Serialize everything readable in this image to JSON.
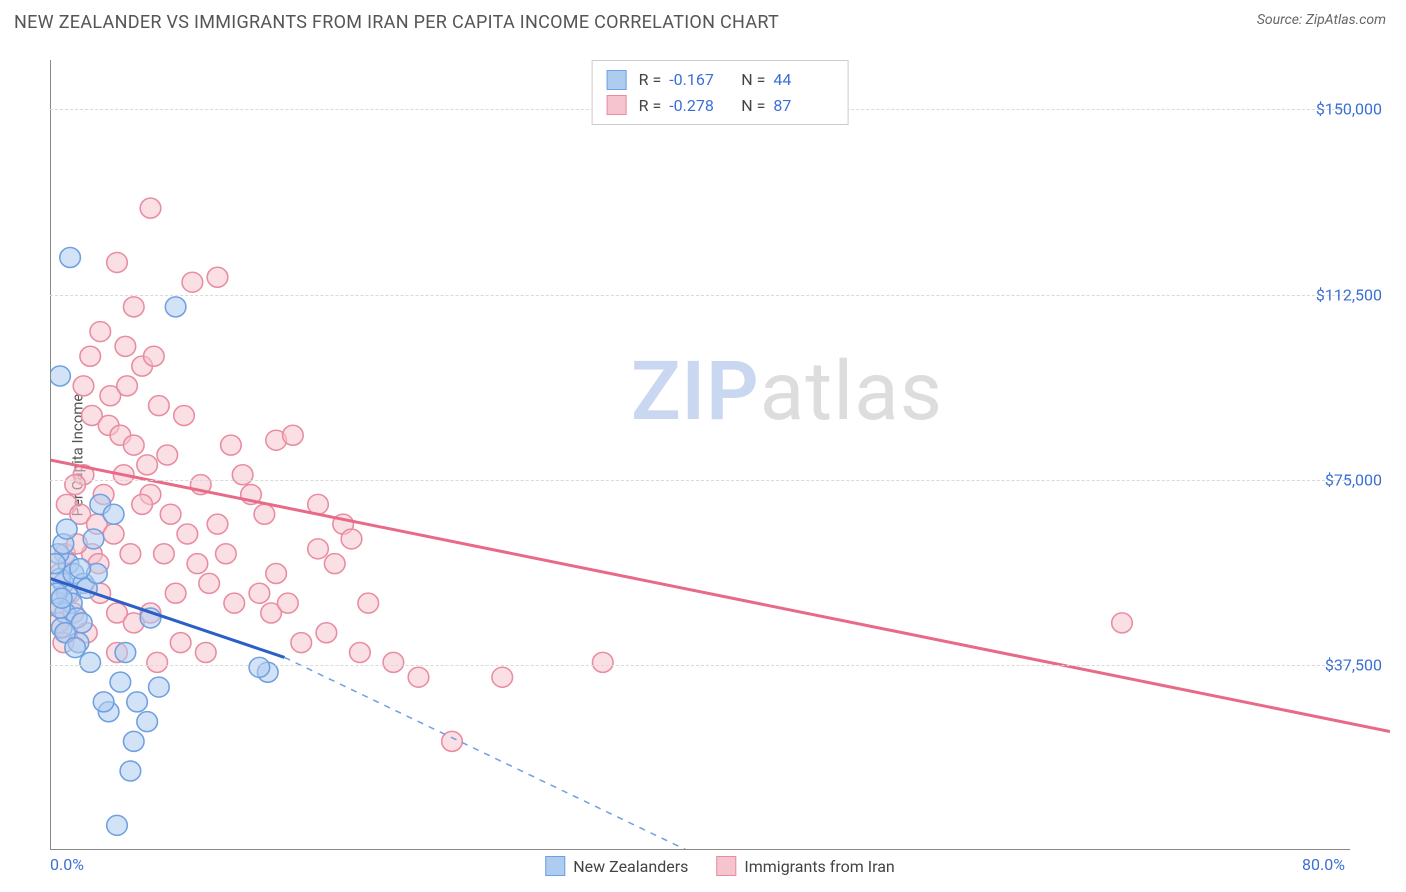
{
  "header": {
    "title": "NEW ZEALANDER VS IMMIGRANTS FROM IRAN PER CAPITA INCOME CORRELATION CHART",
    "source_prefix": "Source: ",
    "source_name": "ZipAtlas.com"
  },
  "watermark": {
    "part1": "ZIP",
    "part2": "atlas"
  },
  "chart": {
    "type": "scatter",
    "ylabel": "Per Capita Income",
    "xlim": [
      0,
      80
    ],
    "ylim": [
      0,
      160000
    ],
    "x_ticks": [
      {
        "v": 0,
        "label": "0.0%"
      },
      {
        "v": 80,
        "label": "80.0%"
      }
    ],
    "y_ticks": [
      {
        "v": 37500,
        "label": "$37,500"
      },
      {
        "v": 75000,
        "label": "$75,000"
      },
      {
        "v": 112500,
        "label": "$112,500"
      },
      {
        "v": 150000,
        "label": "$150,000"
      }
    ],
    "grid_color": "#d9d9d9",
    "axis_color": "#888888",
    "background_color": "#ffffff",
    "point_radius": 10,
    "point_opacity": 0.55,
    "series": [
      {
        "name": "New Zealanders",
        "color_fill": "#aeccf0",
        "color_stroke": "#6fa0e0",
        "R": "-0.167",
        "N": "44",
        "trend": {
          "x1": 0,
          "y1": 55000,
          "x2": 14,
          "y2": 39000,
          "color": "#2b5fc7",
          "width": 3,
          "dash": "solid"
        },
        "trend_ext": {
          "x1": 14,
          "y1": 39000,
          "x2": 38,
          "y2": 0,
          "color": "#6fa0e0",
          "width": 1.5,
          "dash": "dashed"
        },
        "points": [
          [
            1.2,
            120000
          ],
          [
            0.6,
            96000
          ],
          [
            0.8,
            54000
          ],
          [
            1.0,
            52000
          ],
          [
            1.1,
            58000
          ],
          [
            1.3,
            50000
          ],
          [
            0.9,
            48000
          ],
          [
            1.6,
            47000
          ],
          [
            1.9,
            46000
          ],
          [
            0.7,
            45000
          ],
          [
            0.6,
            55000
          ],
          [
            1.4,
            56000
          ],
          [
            2.6,
            63000
          ],
          [
            3.0,
            70000
          ],
          [
            3.8,
            68000
          ],
          [
            4.5,
            40000
          ],
          [
            6.0,
            47000
          ],
          [
            7.5,
            110000
          ],
          [
            3.5,
            28000
          ],
          [
            5.2,
            30000
          ],
          [
            5.8,
            26000
          ],
          [
            6.5,
            33000
          ],
          [
            13.0,
            36000
          ],
          [
            12.5,
            37000
          ],
          [
            4.0,
            5000
          ],
          [
            1.7,
            42000
          ],
          [
            2.0,
            54000
          ],
          [
            2.2,
            53000
          ],
          [
            0.5,
            60000
          ],
          [
            0.8,
            62000
          ],
          [
            1.0,
            65000
          ],
          [
            0.4,
            52000
          ],
          [
            0.3,
            58000
          ],
          [
            0.6,
            49000
          ],
          [
            0.9,
            44000
          ],
          [
            1.5,
            41000
          ],
          [
            4.8,
            16000
          ],
          [
            5.0,
            22000
          ],
          [
            2.8,
            56000
          ],
          [
            3.2,
            30000
          ],
          [
            1.8,
            57000
          ],
          [
            0.7,
            51000
          ],
          [
            2.4,
            38000
          ],
          [
            4.2,
            34000
          ]
        ]
      },
      {
        "name": "Immigrants from Iran",
        "color_fill": "#f6c4ce",
        "color_stroke": "#e98ca0",
        "R": "-0.278",
        "N": "87",
        "trend": {
          "x1": 0,
          "y1": 79000,
          "x2": 80,
          "y2": 24000,
          "color": "#e86a86",
          "width": 3,
          "dash": "solid"
        },
        "points": [
          [
            6.0,
            130000
          ],
          [
            4.0,
            119000
          ],
          [
            5.0,
            110000
          ],
          [
            8.5,
            115000
          ],
          [
            10.0,
            116000
          ],
          [
            4.5,
            102000
          ],
          [
            3.0,
            105000
          ],
          [
            5.5,
            98000
          ],
          [
            2.0,
            94000
          ],
          [
            2.5,
            88000
          ],
          [
            3.5,
            86000
          ],
          [
            4.2,
            84000
          ],
          [
            5.0,
            82000
          ],
          [
            6.5,
            90000
          ],
          [
            7.0,
            80000
          ],
          [
            8.0,
            88000
          ],
          [
            9.0,
            74000
          ],
          [
            6.0,
            72000
          ],
          [
            5.5,
            70000
          ],
          [
            2.0,
            76000
          ],
          [
            1.5,
            74000
          ],
          [
            1.0,
            70000
          ],
          [
            1.8,
            68000
          ],
          [
            2.8,
            66000
          ],
          [
            3.8,
            64000
          ],
          [
            2.5,
            60000
          ],
          [
            4.8,
            60000
          ],
          [
            6.8,
            60000
          ],
          [
            8.8,
            58000
          ],
          [
            9.5,
            54000
          ],
          [
            10.5,
            60000
          ],
          [
            12.0,
            72000
          ],
          [
            13.5,
            83000
          ],
          [
            14.5,
            84000
          ],
          [
            16.0,
            61000
          ],
          [
            17.0,
            58000
          ],
          [
            18.5,
            40000
          ],
          [
            19.0,
            50000
          ],
          [
            3.0,
            52000
          ],
          [
            4.0,
            48000
          ],
          [
            5.0,
            46000
          ],
          [
            6.0,
            48000
          ],
          [
            7.5,
            52000
          ],
          [
            10.0,
            66000
          ],
          [
            11.0,
            50000
          ],
          [
            12.5,
            52000
          ],
          [
            13.5,
            56000
          ],
          [
            15.0,
            42000
          ],
          [
            16.5,
            44000
          ],
          [
            17.5,
            66000
          ],
          [
            16.0,
            70000
          ],
          [
            18.0,
            63000
          ],
          [
            20.5,
            38000
          ],
          [
            22.0,
            35000
          ],
          [
            24.0,
            22000
          ],
          [
            27.0,
            35000
          ],
          [
            33.0,
            38000
          ],
          [
            64.0,
            46000
          ],
          [
            2.2,
            44000
          ],
          [
            1.0,
            44000
          ],
          [
            0.8,
            42000
          ],
          [
            0.5,
            46000
          ],
          [
            1.4,
            48000
          ],
          [
            3.2,
            72000
          ],
          [
            4.4,
            76000
          ],
          [
            5.8,
            78000
          ],
          [
            7.2,
            68000
          ],
          [
            8.2,
            64000
          ],
          [
            3.6,
            92000
          ],
          [
            4.6,
            94000
          ],
          [
            6.2,
            100000
          ],
          [
            2.4,
            100000
          ],
          [
            10.8,
            82000
          ],
          [
            11.5,
            76000
          ],
          [
            12.8,
            68000
          ],
          [
            7.8,
            42000
          ],
          [
            9.3,
            40000
          ],
          [
            6.4,
            38000
          ],
          [
            4.0,
            40000
          ],
          [
            1.2,
            52000
          ],
          [
            0.6,
            56000
          ],
          [
            0.4,
            50000
          ],
          [
            0.9,
            60000
          ],
          [
            1.6,
            62000
          ],
          [
            2.9,
            58000
          ],
          [
            13.2,
            48000
          ],
          [
            14.2,
            50000
          ]
        ]
      }
    ],
    "legend_top": {
      "border_color": "#cccccc",
      "R_label": "R =",
      "N_label": "N ="
    }
  }
}
